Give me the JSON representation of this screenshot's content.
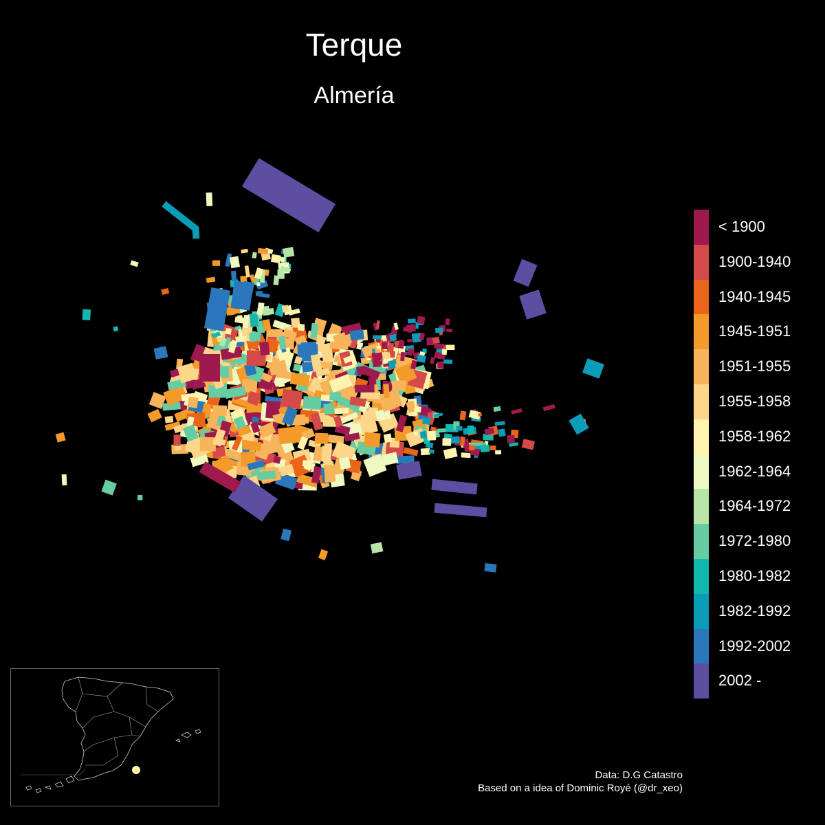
{
  "title": "Terque",
  "subtitle": "Almería",
  "legend": [
    {
      "label": "< 1900",
      "color": "#9e1a4e"
    },
    {
      "label": "1900-1940",
      "color": "#d44a48"
    },
    {
      "label": "1940-1945",
      "color": "#e8651a"
    },
    {
      "label": "1945-1951",
      "color": "#f39a2a"
    },
    {
      "label": "1951-1955",
      "color": "#f8b45a"
    },
    {
      "label": "1955-1958",
      "color": "#fdd68a"
    },
    {
      "label": "1958-1962",
      "color": "#fef4ae"
    },
    {
      "label": "1962-1964",
      "color": "#eef8c0"
    },
    {
      "label": "1964-1972",
      "color": "#b6e5a6"
    },
    {
      "label": "1972-1980",
      "color": "#66cca2"
    },
    {
      "label": "1980-1982",
      "color": "#12b8ae"
    },
    {
      "label": "1982-1992",
      "color": "#0b9db8"
    },
    {
      "label": "1992-2002",
      "color": "#2a78bb"
    },
    {
      "label": "2002 -",
      "color": "#5e4ea2"
    }
  ],
  "inset": {
    "marker_color": "#fff7a8"
  },
  "caption": {
    "line1": "Data: D.G Catastro",
    "line2": "Based on a idea of Dominic Royé (@dr_xeo)"
  }
}
